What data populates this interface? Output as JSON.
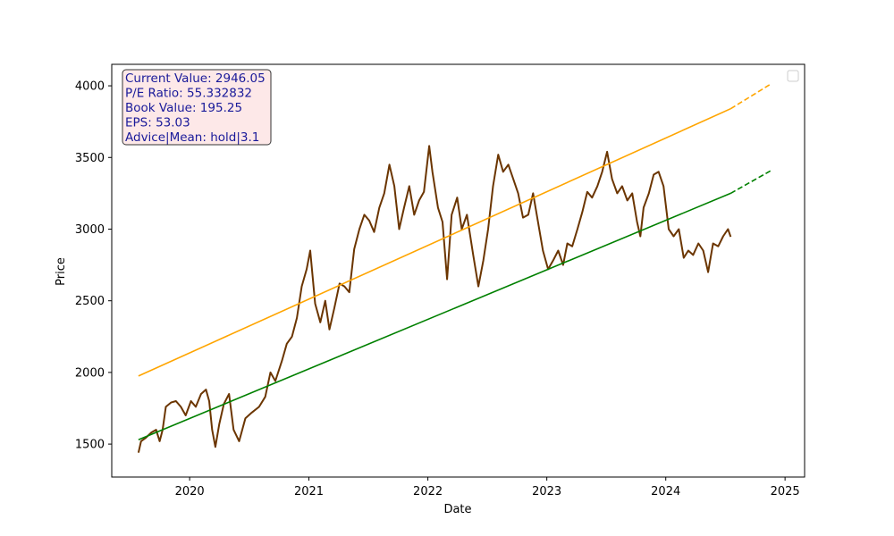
{
  "chart_data": {
    "type": "line",
    "xlabel": "Date",
    "ylabel": "Price",
    "x_ticks": [
      "2020",
      "2021",
      "2022",
      "2023",
      "2024",
      "2025"
    ],
    "y_ticks": [
      "1500",
      "2000",
      "2500",
      "3000",
      "3500",
      "4000"
    ],
    "xlim": [
      "2019-05-07",
      "2025-03-02"
    ],
    "ylim": [
      1270,
      4150
    ],
    "grid": false,
    "legend": "top-right (empty)",
    "info_box": {
      "lines": [
        "Current Value: 2946.05",
        "P/E Ratio: 55.332832",
        "Book Value: 195.25",
        "EPS: 53.03",
        "Advice|Mean: hold|3.1"
      ],
      "text_color": "#1a1a9a",
      "background": "#fde8e8",
      "border": "#333333"
    },
    "series": [
      {
        "color": "#6b3500",
        "style": "solid",
        "points": [
          [
            "2019-07-28",
            1440
          ],
          [
            "2019-08-05",
            1520
          ],
          [
            "2019-08-20",
            1545
          ],
          [
            "2019-09-05",
            1580
          ],
          [
            "2019-09-20",
            1600
          ],
          [
            "2019-10-01",
            1520
          ],
          [
            "2019-10-10",
            1600
          ],
          [
            "2019-10-20",
            1760
          ],
          [
            "2019-11-05",
            1790
          ],
          [
            "2019-11-20",
            1800
          ],
          [
            "2019-12-05",
            1760
          ],
          [
            "2019-12-20",
            1700
          ],
          [
            "2020-01-05",
            1800
          ],
          [
            "2020-01-20",
            1760
          ],
          [
            "2020-02-05",
            1850
          ],
          [
            "2020-02-20",
            1880
          ],
          [
            "2020-03-01",
            1800
          ],
          [
            "2020-03-10",
            1600
          ],
          [
            "2020-03-20",
            1480
          ],
          [
            "2020-04-01",
            1640
          ],
          [
            "2020-04-15",
            1780
          ],
          [
            "2020-05-01",
            1850
          ],
          [
            "2020-05-15",
            1600
          ],
          [
            "2020-06-01",
            1520
          ],
          [
            "2020-06-20",
            1680
          ],
          [
            "2020-07-10",
            1720
          ],
          [
            "2020-08-01",
            1760
          ],
          [
            "2020-08-20",
            1830
          ],
          [
            "2020-09-05",
            2000
          ],
          [
            "2020-09-20",
            1940
          ],
          [
            "2020-10-10",
            2080
          ],
          [
            "2020-10-25",
            2200
          ],
          [
            "2020-11-10",
            2250
          ],
          [
            "2020-11-25",
            2380
          ],
          [
            "2020-12-10",
            2600
          ],
          [
            "2020-12-25",
            2720
          ],
          [
            "2021-01-05",
            2850
          ],
          [
            "2021-01-20",
            2480
          ],
          [
            "2021-02-05",
            2350
          ],
          [
            "2021-02-20",
            2500
          ],
          [
            "2021-03-05",
            2300
          ],
          [
            "2021-03-20",
            2450
          ],
          [
            "2021-04-05",
            2620
          ],
          [
            "2021-04-20",
            2600
          ],
          [
            "2021-05-05",
            2560
          ],
          [
            "2021-05-20",
            2860
          ],
          [
            "2021-06-05",
            3000
          ],
          [
            "2021-06-20",
            3100
          ],
          [
            "2021-07-05",
            3060
          ],
          [
            "2021-07-20",
            2980
          ],
          [
            "2021-08-05",
            3150
          ],
          [
            "2021-08-20",
            3250
          ],
          [
            "2021-09-05",
            3450
          ],
          [
            "2021-09-20",
            3300
          ],
          [
            "2021-10-05",
            3000
          ],
          [
            "2021-10-20",
            3150
          ],
          [
            "2021-11-05",
            3300
          ],
          [
            "2021-11-20",
            3100
          ],
          [
            "2021-12-05",
            3200
          ],
          [
            "2021-12-20",
            3260
          ],
          [
            "2022-01-05",
            3580
          ],
          [
            "2022-01-15",
            3400
          ],
          [
            "2022-02-01",
            3150
          ],
          [
            "2022-02-15",
            3050
          ],
          [
            "2022-03-01",
            2650
          ],
          [
            "2022-03-15",
            3100
          ],
          [
            "2022-04-01",
            3220
          ],
          [
            "2022-04-15",
            3000
          ],
          [
            "2022-05-01",
            3100
          ],
          [
            "2022-05-20",
            2820
          ],
          [
            "2022-06-05",
            2600
          ],
          [
            "2022-06-20",
            2780
          ],
          [
            "2022-07-05",
            3000
          ],
          [
            "2022-07-20",
            3300
          ],
          [
            "2022-08-05",
            3520
          ],
          [
            "2022-08-20",
            3400
          ],
          [
            "2022-09-05",
            3450
          ],
          [
            "2022-09-20",
            3350
          ],
          [
            "2022-10-05",
            3250
          ],
          [
            "2022-10-20",
            3080
          ],
          [
            "2022-11-05",
            3100
          ],
          [
            "2022-11-20",
            3250
          ],
          [
            "2022-12-05",
            3050
          ],
          [
            "2022-12-20",
            2850
          ],
          [
            "2023-01-05",
            2720
          ],
          [
            "2023-01-20",
            2780
          ],
          [
            "2023-02-05",
            2850
          ],
          [
            "2023-02-20",
            2750
          ],
          [
            "2023-03-05",
            2900
          ],
          [
            "2023-03-20",
            2880
          ],
          [
            "2023-04-05",
            3000
          ],
          [
            "2023-04-20",
            3120
          ],
          [
            "2023-05-05",
            3260
          ],
          [
            "2023-05-20",
            3220
          ],
          [
            "2023-06-05",
            3300
          ],
          [
            "2023-06-20",
            3400
          ],
          [
            "2023-07-05",
            3540
          ],
          [
            "2023-07-20",
            3350
          ],
          [
            "2023-08-05",
            3250
          ],
          [
            "2023-08-20",
            3300
          ],
          [
            "2023-09-05",
            3200
          ],
          [
            "2023-09-20",
            3250
          ],
          [
            "2023-10-05",
            3050
          ],
          [
            "2023-10-15",
            2950
          ],
          [
            "2023-10-25",
            3150
          ],
          [
            "2023-11-10",
            3250
          ],
          [
            "2023-11-25",
            3380
          ],
          [
            "2023-12-10",
            3400
          ],
          [
            "2023-12-25",
            3300
          ],
          [
            "2024-01-10",
            3000
          ],
          [
            "2024-01-25",
            2950
          ],
          [
            "2024-02-10",
            3000
          ],
          [
            "2024-02-25",
            2800
          ],
          [
            "2024-03-10",
            2850
          ],
          [
            "2024-03-25",
            2820
          ],
          [
            "2024-04-10",
            2900
          ],
          [
            "2024-04-25",
            2850
          ],
          [
            "2024-05-10",
            2700
          ],
          [
            "2024-05-25",
            2900
          ],
          [
            "2024-06-10",
            2880
          ],
          [
            "2024-06-25",
            2950
          ],
          [
            "2024-07-10",
            3000
          ],
          [
            "2024-07-18",
            2946
          ]
        ]
      },
      {
        "color": "#ffa500",
        "style": "solid",
        "points": [
          [
            "2019-07-28",
            1975
          ],
          [
            "2024-07-18",
            3840
          ]
        ]
      },
      {
        "color": "#ffa500",
        "style": "dashed",
        "points": [
          [
            "2024-07-18",
            3840
          ],
          [
            "2024-11-20",
            4015
          ]
        ]
      },
      {
        "color": "#008000",
        "style": "solid",
        "points": [
          [
            "2019-07-28",
            1530
          ],
          [
            "2024-07-18",
            3250
          ]
        ]
      },
      {
        "color": "#008000",
        "style": "dashed",
        "points": [
          [
            "2024-07-18",
            3250
          ],
          [
            "2024-11-20",
            3410
          ]
        ]
      }
    ]
  }
}
